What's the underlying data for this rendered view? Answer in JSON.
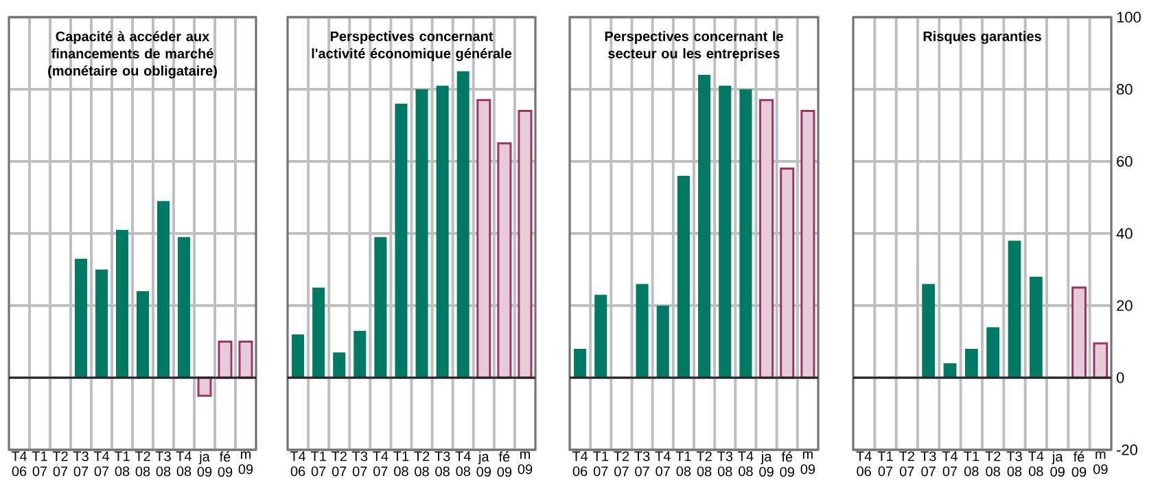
{
  "chart_data": [
    {
      "type": "bar",
      "title": "Capacité à accéder aux financements de marché (monétaire ou obligataire)",
      "categories": [
        "T4 06",
        "T1 07",
        "T2 07",
        "T3 07",
        "T4 07",
        "T1 08",
        "T2 08",
        "T3 08",
        "T4 08",
        "ja 09",
        "fé 09",
        "m 09"
      ],
      "series": [
        {
          "color": "#007a64",
          "values": [
            null,
            null,
            null,
            33,
            30,
            41,
            24,
            49,
            39,
            null,
            null,
            null
          ]
        },
        {
          "color": "#9c3468",
          "values": [
            null,
            null,
            null,
            null,
            null,
            null,
            null,
            null,
            null,
            -5,
            10,
            10
          ]
        }
      ],
      "ylim": [
        -20,
        100
      ],
      "yticks": [
        -20,
        0,
        20,
        40,
        60,
        80,
        100
      ],
      "grid": true,
      "tick_labels": "x",
      "ref_lines": [
        {
          "axis": "y",
          "value": 0,
          "color": "#222222"
        }
      ]
    },
    {
      "type": "bar",
      "title": "Perspectives concernant l'activité économique générale",
      "categories": [
        "T4 06",
        "T1 07",
        "T2 07",
        "T3 07",
        "T4 07",
        "T1 08",
        "T2 08",
        "T3 08",
        "T4 08",
        "ja 09",
        "fé 09",
        "m 09"
      ],
      "series": [
        {
          "color": "#007a64",
          "values": [
            12,
            25,
            7,
            13,
            39,
            76,
            80,
            81,
            85,
            null,
            null,
            null
          ]
        },
        {
          "color": "#9c3468",
          "values": [
            null,
            null,
            null,
            null,
            null,
            null,
            null,
            null,
            null,
            77,
            65,
            74
          ]
        }
      ],
      "ylim": [
        -20,
        100
      ],
      "yticks": [
        -20,
        0,
        20,
        40,
        60,
        80,
        100
      ],
      "grid": true,
      "tick_labels": "x",
      "ref_lines": [
        {
          "axis": "y",
          "value": 0,
          "color": "#222222"
        }
      ]
    },
    {
      "type": "bar",
      "title": "Perspectives concernant le secteur ou les entreprises",
      "categories": [
        "T4 06",
        "T1 07",
        "T2 07",
        "T3 07",
        "T4 07",
        "T1 08",
        "T2 08",
        "T3 08",
        "T4 08",
        "ja 09",
        "fé 09",
        "m 09"
      ],
      "series": [
        {
          "color": "#007a64",
          "values": [
            8,
            23,
            null,
            26,
            20,
            56,
            84,
            81,
            80,
            null,
            null,
            null
          ]
        },
        {
          "color": "#9c3468",
          "values": [
            null,
            null,
            null,
            null,
            null,
            null,
            null,
            null,
            null,
            77,
            58,
            74
          ]
        }
      ],
      "ylim": [
        -20,
        100
      ],
      "yticks": [
        -20,
        0,
        20,
        40,
        60,
        80,
        100
      ],
      "grid": true,
      "tick_labels": "x",
      "ref_lines": [
        {
          "axis": "y",
          "value": 0,
          "color": "#222222"
        }
      ]
    },
    {
      "type": "bar",
      "title": "Risques garanties",
      "categories": [
        "T4 06",
        "T1 07",
        "T2 07",
        "T3 07",
        "T4 07",
        "T1 08",
        "T2 08",
        "T3 08",
        "T4 08",
        "ja 09",
        "fé 09",
        "m 09"
      ],
      "series": [
        {
          "color": "#007a64",
          "values": [
            null,
            null,
            null,
            26,
            4,
            8,
            14,
            38,
            28,
            null,
            null,
            null
          ]
        },
        {
          "color": "#9c3468",
          "values": [
            null,
            null,
            null,
            null,
            null,
            null,
            null,
            null,
            null,
            null,
            25,
            9.5
          ]
        }
      ],
      "ylim": [
        -20,
        100
      ],
      "yticks": [
        -20,
        0,
        20,
        40,
        60,
        80,
        100
      ],
      "grid": true,
      "ref_lines": [
        {
          "axis": "y",
          "value": 0,
          "color": "#222222"
        }
      ]
    }
  ]
}
